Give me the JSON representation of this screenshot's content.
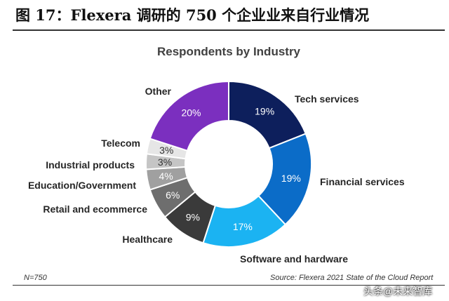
{
  "figure": {
    "title": "图 17：Flexera 调研的 750 个企业业来自行业情况",
    "note_left": "N=750",
    "note_right": "Source: Flexera 2021 State of the Cloud Report",
    "watermark": "头条@未来智库"
  },
  "chart_data": {
    "type": "pie",
    "title": "Respondents by Industry",
    "donut": true,
    "legend": "labels beside slices",
    "categories": [
      "Tech services",
      "Financial services",
      "Software and hardware",
      "Healthcare",
      "Retail and ecommerce",
      "Education/Government",
      "Industrial products",
      "Telecom",
      "Other"
    ],
    "values": [
      19,
      19,
      17,
      9,
      6,
      4,
      3,
      3,
      20
    ],
    "value_labels": [
      "19%",
      "19%",
      "17%",
      "9%",
      "6%",
      "4%",
      "3%",
      "3%",
      "20%"
    ],
    "colors": [
      "#0d1f5c",
      "#0b6cc8",
      "#1bb3f2",
      "#3a3a3a",
      "#6e6e6e",
      "#a0a0a0",
      "#c5c5c5",
      "#e6e6e6",
      "#7b2fbf"
    ]
  }
}
